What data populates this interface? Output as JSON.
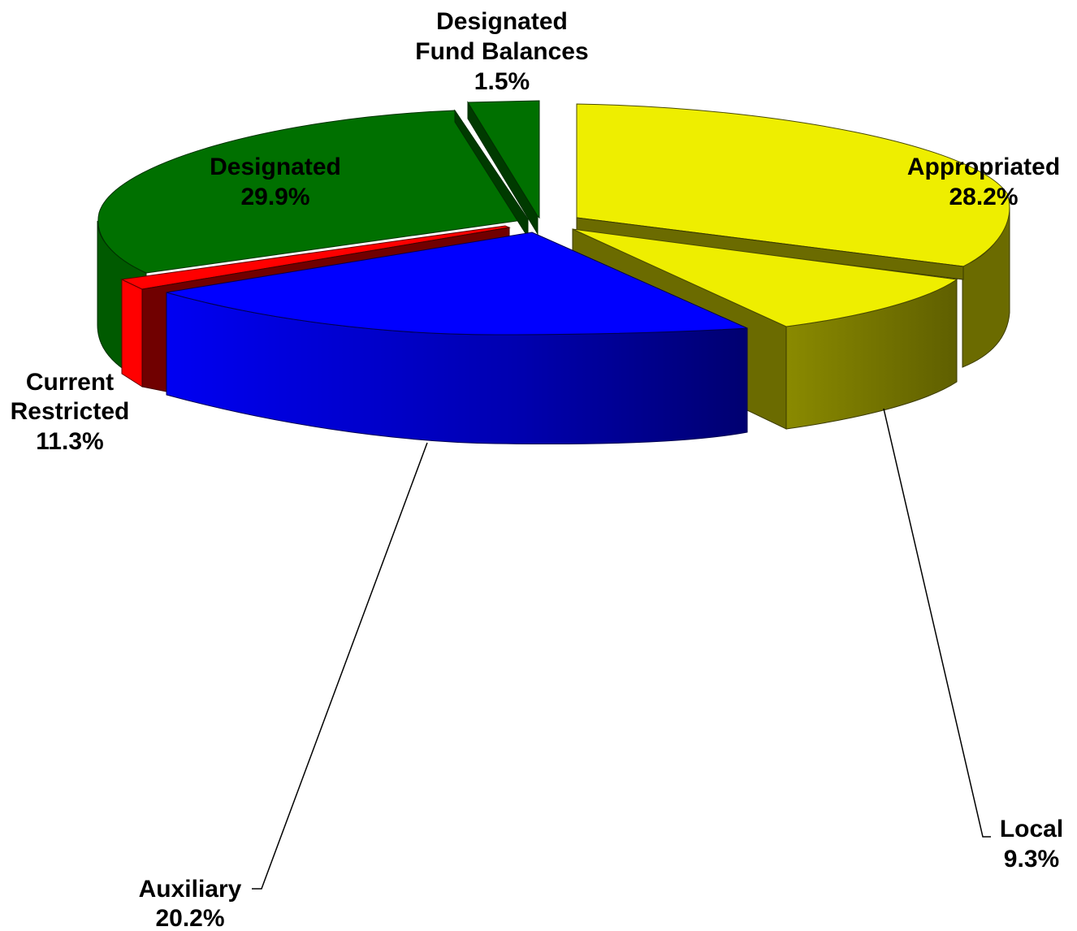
{
  "chart_data": {
    "type": "pie",
    "style": "3d-exploded",
    "slices": [
      {
        "label": [
          "Appropriated"
        ],
        "percent_text": "28.2%",
        "value": 28.2,
        "color": "#EEEE00",
        "dark": "#6B6B00"
      },
      {
        "label": [
          "Local"
        ],
        "percent_text": "9.3%",
        "value": 9.3,
        "color": "#EEEE00",
        "dark": "#6B6B00"
      },
      {
        "label": [
          "Auxiliary"
        ],
        "percent_text": "20.2%",
        "value": 20.2,
        "color": "#0000FF",
        "dark": "#000080"
      },
      {
        "label": [
          "Current",
          "Restricted"
        ],
        "percent_text": "11.3%",
        "value": 11.3,
        "color": "#FF0000",
        "dark": "#700000"
      },
      {
        "label": [
          "Designated"
        ],
        "percent_text": "29.9%",
        "value": 29.9,
        "color": "#007000",
        "dark": "#003A00"
      },
      {
        "label": [
          "Designated",
          "Fund Balances"
        ],
        "percent_text": "1.5%",
        "value": 1.5,
        "color": "#007000",
        "dark": "#003A00"
      }
    ],
    "legend": "none",
    "data_labels": "category-and-percent"
  }
}
